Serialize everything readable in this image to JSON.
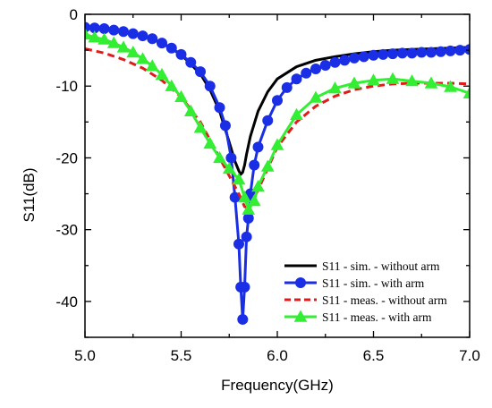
{
  "chart_data": {
    "type": "line",
    "title": "",
    "xlabel": "Frequency(GHz)",
    "ylabel": "S11(dB)",
    "xlim": [
      5.0,
      7.0
    ],
    "ylim": [
      -45,
      0
    ],
    "x_ticks": [
      {
        "value": 5.0,
        "label": "5.0"
      },
      {
        "value": 5.5,
        "label": "5.5"
      },
      {
        "value": 6.0,
        "label": "6.0"
      },
      {
        "value": 6.5,
        "label": "6.5"
      },
      {
        "value": 7.0,
        "label": "7.0"
      }
    ],
    "y_ticks": [
      {
        "value": 0,
        "label": "0"
      },
      {
        "value": -10,
        "label": "-10"
      },
      {
        "value": -20,
        "label": "-20"
      },
      {
        "value": -30,
        "label": "-30"
      },
      {
        "value": -40,
        "label": "-40"
      }
    ],
    "grid": false,
    "legend_position": "bottom-right",
    "series": [
      {
        "name": "S11 - sim. - without arm",
        "color": "#000000",
        "dash": "solid",
        "marker": "none",
        "x": [
          5.0,
          5.1,
          5.2,
          5.3,
          5.4,
          5.5,
          5.6,
          5.65,
          5.7,
          5.75,
          5.78,
          5.8,
          5.81,
          5.82,
          5.83,
          5.84,
          5.86,
          5.9,
          5.95,
          6.0,
          6.1,
          6.2,
          6.3,
          6.4,
          6.5,
          6.6,
          6.7,
          6.8,
          6.9,
          7.0
        ],
        "y": [
          -1.8,
          -2.0,
          -2.4,
          -3.0,
          -4.0,
          -5.6,
          -8.3,
          -10.5,
          -13.5,
          -17.8,
          -20.5,
          -21.8,
          -22.3,
          -22.0,
          -21.0,
          -19.5,
          -17.0,
          -13.5,
          -10.8,
          -9.0,
          -7.3,
          -6.4,
          -5.9,
          -5.5,
          -5.2,
          -5.0,
          -4.9,
          -4.8,
          -4.7,
          -4.6
        ]
      },
      {
        "name": "S11 - sim. - with arm",
        "color": "#1a2ee6",
        "dash": "solid",
        "marker": "circle",
        "x": [
          5.0,
          5.05,
          5.1,
          5.15,
          5.2,
          5.25,
          5.3,
          5.35,
          5.4,
          5.45,
          5.5,
          5.55,
          5.6,
          5.65,
          5.7,
          5.73,
          5.76,
          5.78,
          5.8,
          5.81,
          5.82,
          5.83,
          5.84,
          5.85,
          5.86,
          5.88,
          5.9,
          5.95,
          6.0,
          6.05,
          6.1,
          6.15,
          6.2,
          6.25,
          6.3,
          6.35,
          6.4,
          6.45,
          6.5,
          6.55,
          6.6,
          6.65,
          6.7,
          6.75,
          6.8,
          6.85,
          6.9,
          6.95,
          7.0
        ],
        "y": [
          -1.8,
          -1.9,
          -2.0,
          -2.2,
          -2.4,
          -2.7,
          -3.0,
          -3.4,
          -4.0,
          -4.7,
          -5.6,
          -6.7,
          -8.0,
          -10.0,
          -13.0,
          -15.5,
          -20.0,
          -25.5,
          -32.0,
          -38.0,
          -42.5,
          -38.0,
          -31.0,
          -28.4,
          -25.0,
          -21.0,
          -18.5,
          -14.8,
          -12.0,
          -10.2,
          -9.0,
          -8.2,
          -7.6,
          -7.1,
          -6.7,
          -6.4,
          -6.1,
          -5.9,
          -5.7,
          -5.6,
          -5.5,
          -5.4,
          -5.4,
          -5.3,
          -5.3,
          -5.2,
          -5.1,
          -5.0,
          -4.9
        ]
      },
      {
        "name": "S11 - meas. - without arm",
        "color": "#e01b1b",
        "dash": "dashed",
        "marker": "none",
        "x": [
          5.0,
          5.1,
          5.2,
          5.3,
          5.4,
          5.5,
          5.6,
          5.65,
          5.7,
          5.75,
          5.8,
          5.83,
          5.85,
          5.87,
          5.9,
          5.95,
          6.0,
          6.1,
          6.2,
          6.3,
          6.4,
          6.5,
          6.6,
          6.7,
          6.8,
          6.9,
          7.0
        ],
        "y": [
          -4.8,
          -5.4,
          -6.3,
          -7.5,
          -9.2,
          -11.5,
          -15.0,
          -17.5,
          -20.0,
          -22.5,
          -25.0,
          -26.8,
          -27.0,
          -26.0,
          -24.5,
          -21.5,
          -18.5,
          -15.0,
          -12.8,
          -11.4,
          -10.5,
          -10.0,
          -9.7,
          -9.6,
          -9.6,
          -9.6,
          -9.7
        ]
      },
      {
        "name": "S11 - meas. - with arm",
        "color": "#33ee33",
        "dash": "solid",
        "marker": "triangle",
        "x": [
          5.0,
          5.05,
          5.1,
          5.15,
          5.2,
          5.25,
          5.3,
          5.35,
          5.4,
          5.45,
          5.5,
          5.55,
          5.6,
          5.65,
          5.7,
          5.75,
          5.8,
          5.83,
          5.85,
          5.88,
          5.9,
          5.95,
          6.0,
          6.1,
          6.2,
          6.3,
          6.4,
          6.5,
          6.6,
          6.7,
          6.8,
          6.9,
          7.0
        ],
        "y": [
          -2.8,
          -3.2,
          -3.5,
          -4.0,
          -4.6,
          -5.3,
          -6.2,
          -7.2,
          -8.4,
          -10.0,
          -11.5,
          -13.5,
          -15.8,
          -18.0,
          -20.0,
          -21.5,
          -23.0,
          -25.5,
          -27.2,
          -26.0,
          -24.0,
          -21.2,
          -18.2,
          -14.0,
          -11.6,
          -10.3,
          -9.6,
          -9.2,
          -9.0,
          -9.3,
          -9.6,
          -10.1,
          -11.0
        ]
      }
    ]
  }
}
